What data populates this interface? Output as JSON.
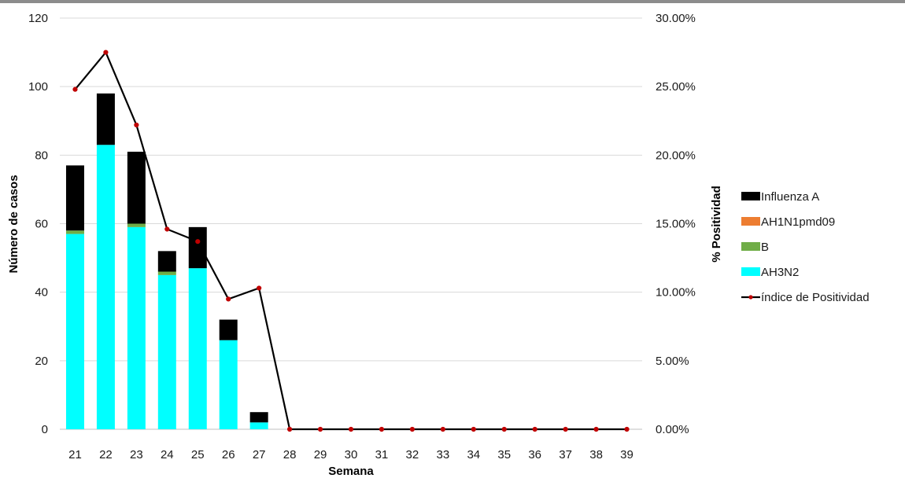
{
  "chart_data": {
    "type": "bar",
    "stacked": true,
    "title": "",
    "xlabel": "Semana",
    "ylabel": "Número de casos",
    "y2label": "% Positividad",
    "ylim": [
      0,
      120
    ],
    "y2lim": [
      0,
      0.3
    ],
    "yticks": [
      "0",
      "20",
      "40",
      "60",
      "80",
      "100",
      "120"
    ],
    "y2ticks": [
      "0.00%",
      "5.00%",
      "10.00%",
      "15.00%",
      "20.00%",
      "25.00%",
      "30.00%"
    ],
    "grid": true,
    "legend_position": "right",
    "categories": [
      "21",
      "22",
      "23",
      "24",
      "25",
      "26",
      "27",
      "28",
      "29",
      "30",
      "31",
      "32",
      "33",
      "34",
      "35",
      "36",
      "37",
      "38",
      "39"
    ],
    "series": [
      {
        "name": "AH3N2",
        "kind": "bar",
        "color": "#00FFFF",
        "values": [
          57,
          83,
          59,
          45,
          47,
          26,
          2,
          0,
          0,
          0,
          0,
          0,
          0,
          0,
          0,
          0,
          0,
          0,
          0
        ]
      },
      {
        "name": "B",
        "kind": "bar",
        "color": "#70AD47",
        "values": [
          1,
          0,
          1,
          1,
          0,
          0,
          0,
          0,
          0,
          0,
          0,
          0,
          0,
          0,
          0,
          0,
          0,
          0,
          0
        ]
      },
      {
        "name": "AH1N1pmd09",
        "kind": "bar",
        "color": "#ED7D31",
        "values": [
          0,
          0,
          0,
          0,
          0,
          0,
          0,
          0,
          0,
          0,
          0,
          0,
          0,
          0,
          0,
          0,
          0,
          0,
          0
        ]
      },
      {
        "name": "Influenza A",
        "kind": "bar",
        "color": "#000000",
        "values": [
          19,
          15,
          21,
          6,
          12,
          6,
          3,
          0,
          0,
          0,
          0,
          0,
          0,
          0,
          0,
          0,
          0,
          0,
          0
        ]
      },
      {
        "name": "índice de Positividad",
        "kind": "line",
        "axis": "right",
        "color": "#000000",
        "marker_color": "#C00000",
        "values": [
          0.248,
          0.275,
          0.222,
          0.146,
          0.137,
          0.095,
          0.103,
          0,
          0,
          0,
          0,
          0,
          0,
          0,
          0,
          0,
          0,
          0,
          0
        ]
      }
    ],
    "legend_order": [
      "Influenza A",
      "AH1N1pmd09",
      "B",
      "AH3N2",
      "índice de Positividad"
    ]
  }
}
